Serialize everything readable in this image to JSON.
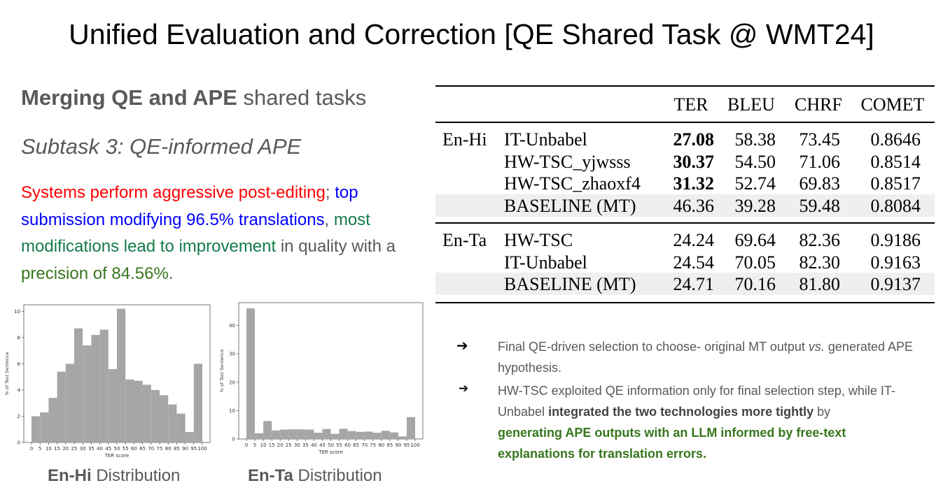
{
  "title": "Unified Evaluation and Correction [QE Shared Task @ WMT24]",
  "heading": {
    "bold": "Merging QE and APE",
    "rest": " shared tasks"
  },
  "subtask": "Subtask 3: QE-informed APE",
  "summary": {
    "p1": "Systems perform aggressive post-editing",
    "p2": ";",
    "p3": " top submission modifying 96.5% translations",
    "p4": ",",
    "p5": " most modifications lead to improvement",
    "p6": " in quality with a ",
    "p7": "precision of 84.56%",
    "p8": "."
  },
  "table": {
    "headers": [
      "TER",
      "BLEU",
      "CHRF",
      "COMET"
    ],
    "groups": [
      {
        "pair": "En-Hi",
        "rows": [
          {
            "system": "IT-Unbabel",
            "ter": "27.08",
            "bleu": "58.38",
            "chrf": "73.45",
            "comet": "0.8646",
            "ter_bold": true,
            "shaded": false
          },
          {
            "system": "HW-TSC_yjwsss",
            "ter": "30.37",
            "bleu": "54.50",
            "chrf": "71.06",
            "comet": "0.8514",
            "ter_bold": true,
            "shaded": false
          },
          {
            "system": "HW-TSC_zhaoxf4",
            "ter": "31.32",
            "bleu": "52.74",
            "chrf": "69.83",
            "comet": "0.8517",
            "ter_bold": true,
            "shaded": false
          },
          {
            "system": "BASELINE (MT)",
            "ter": "46.36",
            "bleu": "39.28",
            "chrf": "59.48",
            "comet": "0.8084",
            "ter_bold": false,
            "shaded": true
          }
        ]
      },
      {
        "pair": "En-Ta",
        "rows": [
          {
            "system": "HW-TSC",
            "ter": "24.24",
            "bleu": "69.64",
            "chrf": "82.36",
            "comet": "0.9186",
            "ter_bold": false,
            "shaded": false
          },
          {
            "system": "IT-Unbabel",
            "ter": "24.54",
            "bleu": "70.05",
            "chrf": "82.30",
            "comet": "0.9163",
            "ter_bold": false,
            "shaded": false
          },
          {
            "system": "BASELINE (MT)",
            "ter": "24.71",
            "bleu": "70.16",
            "chrf": "81.80",
            "comet": "0.9137",
            "ter_bold": false,
            "shaded": true
          }
        ]
      }
    ]
  },
  "chart_data": [
    {
      "type": "bar",
      "title": "",
      "xlabel": "TER score",
      "ylabel": "% of Test Sentence",
      "categories": [
        "0-5",
        "5-10",
        "10-15",
        "15-20",
        "20-25",
        "25-30",
        "30-35",
        "35-40",
        "40-45",
        "45-50",
        "50-55",
        "55-60",
        "60-65",
        "65-70",
        "70-75",
        "75-80",
        "80-85",
        "85-90",
        "90-95",
        "95-100"
      ],
      "values": [
        2.0,
        2.3,
        3.4,
        5.4,
        6.0,
        8.7,
        7.4,
        8.2,
        8.6,
        5.6,
        10.2,
        4.8,
        4.7,
        4.4,
        4.0,
        3.6,
        2.9,
        2.2,
        0.8,
        6.0
      ],
      "xticks": [
        "0",
        "5",
        "10",
        "15",
        "20",
        "25",
        "30",
        "35",
        "40",
        "45",
        "50",
        "55",
        "60",
        "65",
        "70",
        "75",
        "80",
        "85",
        "90",
        "95",
        "100"
      ],
      "yticks": [
        "0",
        "2",
        "4",
        "6",
        "8",
        "10"
      ],
      "ylim": [
        0,
        10.5
      ],
      "color": "#a6a6a6",
      "caption": {
        "bold": "En-Hi",
        "rest": " Distribution"
      }
    },
    {
      "type": "bar",
      "title": "",
      "xlabel": "TER score",
      "ylabel": "% of Test Sentence",
      "categories": [
        "0-5",
        "5-10",
        "10-15",
        "15-20",
        "20-25",
        "25-30",
        "30-35",
        "35-40",
        "40-45",
        "45-50",
        "50-55",
        "55-60",
        "60-65",
        "65-70",
        "70-75",
        "75-80",
        "80-85",
        "85-90",
        "90-95",
        "95-100"
      ],
      "values": [
        46,
        2.0,
        6.3,
        3.0,
        3.3,
        3.4,
        3.4,
        3.3,
        2.2,
        3.5,
        1.8,
        3.6,
        2.8,
        2.5,
        2.6,
        2.2,
        2.9,
        2.3,
        0.9,
        7.7
      ],
      "xticks": [
        "0",
        "5",
        "10",
        "15",
        "20",
        "25",
        "30",
        "35",
        "40",
        "45",
        "50",
        "55",
        "60",
        "65",
        "70",
        "75",
        "80",
        "85",
        "90",
        "95",
        "100"
      ],
      "yticks": [
        "0",
        "10",
        "20",
        "30",
        "40"
      ],
      "ylim": [
        0,
        48
      ],
      "color": "#a6a6a6",
      "caption": {
        "bold": "En-Ta",
        "rest": " Distribution"
      }
    }
  ],
  "bullets": {
    "arrow": "➔",
    "b1": {
      "a": "Final QE-driven selection to choose- original MT output ",
      "em": "vs.",
      "b": " generated APE hypothesis."
    },
    "b2": {
      "a": "HW-TSC exploited QE information only for final selection step, while IT-Unbabel ",
      "strong": "integrated the two technologies more tightly",
      "b": " by ",
      "green": "generating APE outputs with an LLM informed by free-text explanations for translation errors."
    }
  }
}
